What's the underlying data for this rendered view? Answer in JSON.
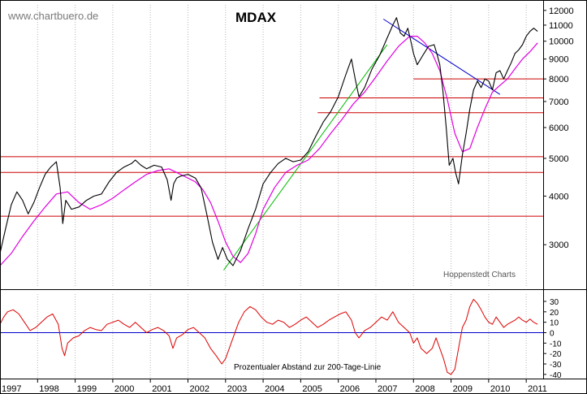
{
  "watermark": "www.chartbuero.de",
  "source_note": "Hoppenstedt Charts",
  "chart_data": [
    {
      "type": "line",
      "title": "MDAX",
      "scale": "log",
      "ylim": [
        2350,
        12400
      ],
      "yticks": [
        "12000",
        "11000",
        "10000",
        "9000",
        "8000",
        "7000",
        "6000",
        "5000",
        "4000",
        "3000"
      ],
      "xlim": [
        1997.0,
        2011.45
      ],
      "series": [
        {
          "name": "",
          "color": "#000000",
          "x": [
            1997.0,
            1997.15,
            1997.3,
            1997.45,
            1997.6,
            1997.75,
            1997.9,
            1998.05,
            1998.2,
            1998.35,
            1998.5,
            1998.6,
            1998.67,
            1998.75,
            1998.9,
            1999.1,
            1999.3,
            1999.5,
            1999.7,
            1999.9,
            2000.1,
            2000.3,
            2000.5,
            2000.6,
            2000.75,
            2000.9,
            2001.1,
            2001.3,
            2001.45,
            2001.55,
            2001.62,
            2001.7,
            2001.8,
            2002.0,
            2002.2,
            2002.35,
            2002.5,
            2002.65,
            2002.8,
            2002.92,
            2003.05,
            2003.2,
            2003.4,
            2003.6,
            2003.8,
            2004.0,
            2004.2,
            2004.4,
            2004.6,
            2004.8,
            2005.0,
            2005.2,
            2005.4,
            2005.6,
            2005.8,
            2006.0,
            2006.2,
            2006.35,
            2006.45,
            2006.55,
            2006.7,
            2006.9,
            2007.1,
            2007.3,
            2007.45,
            2007.55,
            2007.65,
            2007.75,
            2007.85,
            2007.95,
            2008.0,
            2008.1,
            2008.25,
            2008.4,
            2008.55,
            2008.62,
            2008.7,
            2008.78,
            2008.87,
            2008.95,
            2009.05,
            2009.12,
            2009.2,
            2009.3,
            2009.4,
            2009.5,
            2009.6,
            2009.7,
            2009.8,
            2009.9,
            2010.0,
            2010.1,
            2010.2,
            2010.3,
            2010.4,
            2010.5,
            2010.6,
            2010.7,
            2010.8,
            2010.9,
            2011.0,
            2011.1,
            2011.2,
            2011.3
          ],
          "y": [
            2850,
            3300,
            3800,
            4100,
            3900,
            3600,
            3850,
            4200,
            4550,
            4750,
            4900,
            4200,
            3400,
            3900,
            3700,
            3750,
            3900,
            4000,
            4050,
            4350,
            4600,
            4750,
            4850,
            4950,
            4800,
            4700,
            4800,
            4750,
            4400,
            3900,
            4300,
            4450,
            4500,
            4550,
            4450,
            4200,
            3600,
            3050,
            2750,
            2950,
            2750,
            2650,
            2900,
            3300,
            3700,
            4300,
            4600,
            4850,
            5000,
            4900,
            4950,
            5200,
            5700,
            6200,
            6600,
            7200,
            8200,
            9000,
            8000,
            7200,
            7600,
            8500,
            9200,
            10200,
            11000,
            11500,
            10500,
            10300,
            10800,
            9800,
            9300,
            8700,
            9200,
            9700,
            9800,
            9300,
            8700,
            7500,
            6000,
            4800,
            5000,
            4600,
            4300,
            5100,
            5800,
            6700,
            7500,
            7900,
            7600,
            8000,
            7900,
            7500,
            8300,
            8400,
            8000,
            8400,
            8800,
            9300,
            9500,
            9800,
            10300,
            10600,
            10800,
            10600
          ]
        },
        {
          "name": "",
          "color": "#e000e0",
          "x": [
            1997.0,
            1997.3,
            1997.6,
            1997.9,
            1998.2,
            1998.5,
            1998.8,
            1999.1,
            1999.4,
            1999.7,
            2000.0,
            2000.3,
            2000.6,
            2000.9,
            2001.2,
            2001.5,
            2001.8,
            2002.0,
            2002.2,
            2002.4,
            2002.6,
            2002.8,
            2003.0,
            2003.2,
            2003.4,
            2003.6,
            2003.8,
            2004.0,
            2004.3,
            2004.6,
            2004.9,
            2005.2,
            2005.5,
            2005.8,
            2006.1,
            2006.4,
            2006.7,
            2007.0,
            2007.3,
            2007.6,
            2007.9,
            2008.1,
            2008.3,
            2008.5,
            2008.7,
            2008.9,
            2009.1,
            2009.3,
            2009.5,
            2009.7,
            2009.9,
            2010.1,
            2010.3,
            2010.5,
            2010.7,
            2010.9,
            2011.1,
            2011.3
          ],
          "y": [
            2650,
            2850,
            3150,
            3450,
            3750,
            4050,
            4100,
            3850,
            3700,
            3800,
            3950,
            4150,
            4350,
            4550,
            4650,
            4700,
            4550,
            4450,
            4350,
            4150,
            3850,
            3450,
            3050,
            2800,
            2700,
            2850,
            3200,
            3700,
            4200,
            4600,
            4800,
            4950,
            5300,
            5800,
            6300,
            6900,
            7400,
            8100,
            8900,
            9700,
            10300,
            10300,
            9900,
            9300,
            8400,
            7100,
            5800,
            5200,
            5300,
            6000,
            6700,
            7400,
            7700,
            8000,
            8500,
            9000,
            9400,
            9900
          ]
        }
      ],
      "trend_lines": [
        {
          "color": "#00bb00",
          "x": [
            2002.95,
            2007.3
          ],
          "y": [
            2580,
            9800
          ]
        },
        {
          "color": "#0000cc",
          "x": [
            2007.2,
            2010.3
          ],
          "y": [
            11400,
            7300
          ]
        }
      ],
      "horizontal_lines": [
        {
          "color": "#cc0000",
          "y": 5050,
          "x": [
            1997.0,
            2011.45
          ]
        },
        {
          "color": "#cc0000",
          "y": 4600,
          "x": [
            1997.0,
            2011.45
          ]
        },
        {
          "color": "#cc0000",
          "y": 3550,
          "x": [
            1997.0,
            2011.45
          ]
        },
        {
          "color": "#cc0000",
          "y": 8000,
          "x": [
            2008.0,
            2011.45
          ]
        },
        {
          "color": "#cc0000",
          "y": 7150,
          "x": [
            2005.5,
            2011.45
          ]
        },
        {
          "color": "#cc0000",
          "y": 6550,
          "x": [
            2005.45,
            2011.45
          ]
        }
      ]
    },
    {
      "type": "line",
      "title": "Prozentualer Abstand zur 200-Tage-Linie",
      "ylim": [
        -44,
        37
      ],
      "yticks": [
        "30",
        "20",
        "10",
        "0",
        "-10",
        "-20",
        "-30",
        "-40"
      ],
      "xlim": [
        1997.0,
        2011.45
      ],
      "xticks": [
        "1997",
        "1998",
        "1999",
        "2000",
        "2001",
        "2002",
        "2003",
        "2004",
        "2005",
        "2006",
        "2007",
        "2008",
        "2009",
        "2010",
        "2011"
      ],
      "zero_line_color": "#0000cc",
      "series": [
        {
          "name": "",
          "color": "#dd0000",
          "x": [
            1997.0,
            1997.1,
            1997.2,
            1997.35,
            1997.5,
            1997.65,
            1997.8,
            1997.95,
            1998.1,
            1998.25,
            1998.4,
            1998.55,
            1998.65,
            1998.72,
            1998.8,
            1998.95,
            1999.1,
            1999.25,
            1999.4,
            1999.55,
            1999.7,
            1999.85,
            2000.0,
            2000.15,
            2000.3,
            2000.45,
            2000.6,
            2000.75,
            2000.9,
            2001.05,
            2001.2,
            2001.35,
            2001.5,
            2001.6,
            2001.7,
            2001.85,
            2002.0,
            2002.15,
            2002.3,
            2002.45,
            2002.6,
            2002.75,
            2002.9,
            2003.0,
            2003.1,
            2003.2,
            2003.35,
            2003.5,
            2003.65,
            2003.8,
            2003.95,
            2004.1,
            2004.25,
            2004.4,
            2004.55,
            2004.7,
            2004.85,
            2005.0,
            2005.15,
            2005.3,
            2005.45,
            2005.6,
            2005.75,
            2005.9,
            2006.05,
            2006.2,
            2006.35,
            2006.45,
            2006.55,
            2006.7,
            2006.85,
            2007.0,
            2007.15,
            2007.3,
            2007.45,
            2007.6,
            2007.75,
            2007.9,
            2008.0,
            2008.1,
            2008.2,
            2008.35,
            2008.5,
            2008.6,
            2008.7,
            2008.8,
            2008.9,
            2009.0,
            2009.1,
            2009.2,
            2009.3,
            2009.4,
            2009.5,
            2009.6,
            2009.7,
            2009.8,
            2009.9,
            2010.0,
            2010.1,
            2010.2,
            2010.3,
            2010.4,
            2010.5,
            2010.6,
            2010.7,
            2010.8,
            2010.9,
            2011.0,
            2011.1,
            2011.2,
            2011.3
          ],
          "y": [
            8,
            15,
            20,
            22,
            18,
            10,
            2,
            5,
            10,
            15,
            18,
            8,
            -15,
            -22,
            -10,
            -5,
            -3,
            2,
            5,
            3,
            2,
            8,
            10,
            12,
            8,
            5,
            10,
            5,
            0,
            3,
            5,
            2,
            -3,
            -15,
            -5,
            -2,
            3,
            5,
            0,
            -5,
            -15,
            -22,
            -30,
            -25,
            -15,
            -5,
            10,
            20,
            25,
            22,
            15,
            10,
            8,
            12,
            10,
            5,
            8,
            12,
            15,
            10,
            5,
            8,
            12,
            15,
            18,
            20,
            12,
            0,
            -5,
            2,
            5,
            10,
            15,
            12,
            20,
            10,
            5,
            0,
            -10,
            -5,
            -15,
            -20,
            -15,
            -5,
            -15,
            -25,
            -38,
            -40,
            -35,
            -15,
            5,
            12,
            25,
            32,
            28,
            22,
            15,
            10,
            8,
            15,
            10,
            5,
            8,
            10,
            12,
            15,
            12,
            10,
            13,
            10,
            8
          ]
        }
      ]
    }
  ]
}
